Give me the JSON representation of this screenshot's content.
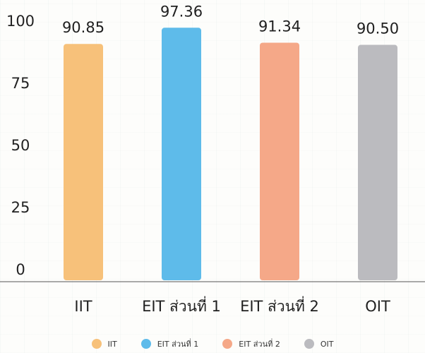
{
  "chart_data": {
    "type": "bar",
    "categories": [
      "IIT",
      "EIT ส่วนที่ 1",
      "EIT ส่วนที่ 2",
      "OIT"
    ],
    "values": [
      90.85,
      97.36,
      91.34,
      90.5
    ],
    "value_labels": [
      "90.85",
      "97.36",
      "91.34",
      "90.50"
    ],
    "colors": [
      "#f7c17a",
      "#5ebbea",
      "#f5a888",
      "#bbbbbf"
    ],
    "yticks": [
      "0",
      "25",
      "50",
      "75",
      "100"
    ],
    "ylim": [
      0,
      100
    ],
    "grid": false,
    "legend_placement": "bottom",
    "series_legend": [
      "IIT",
      "EIT ส่วนที่ 1",
      "EIT ส่วนที่ 2",
      "OIT"
    ]
  }
}
